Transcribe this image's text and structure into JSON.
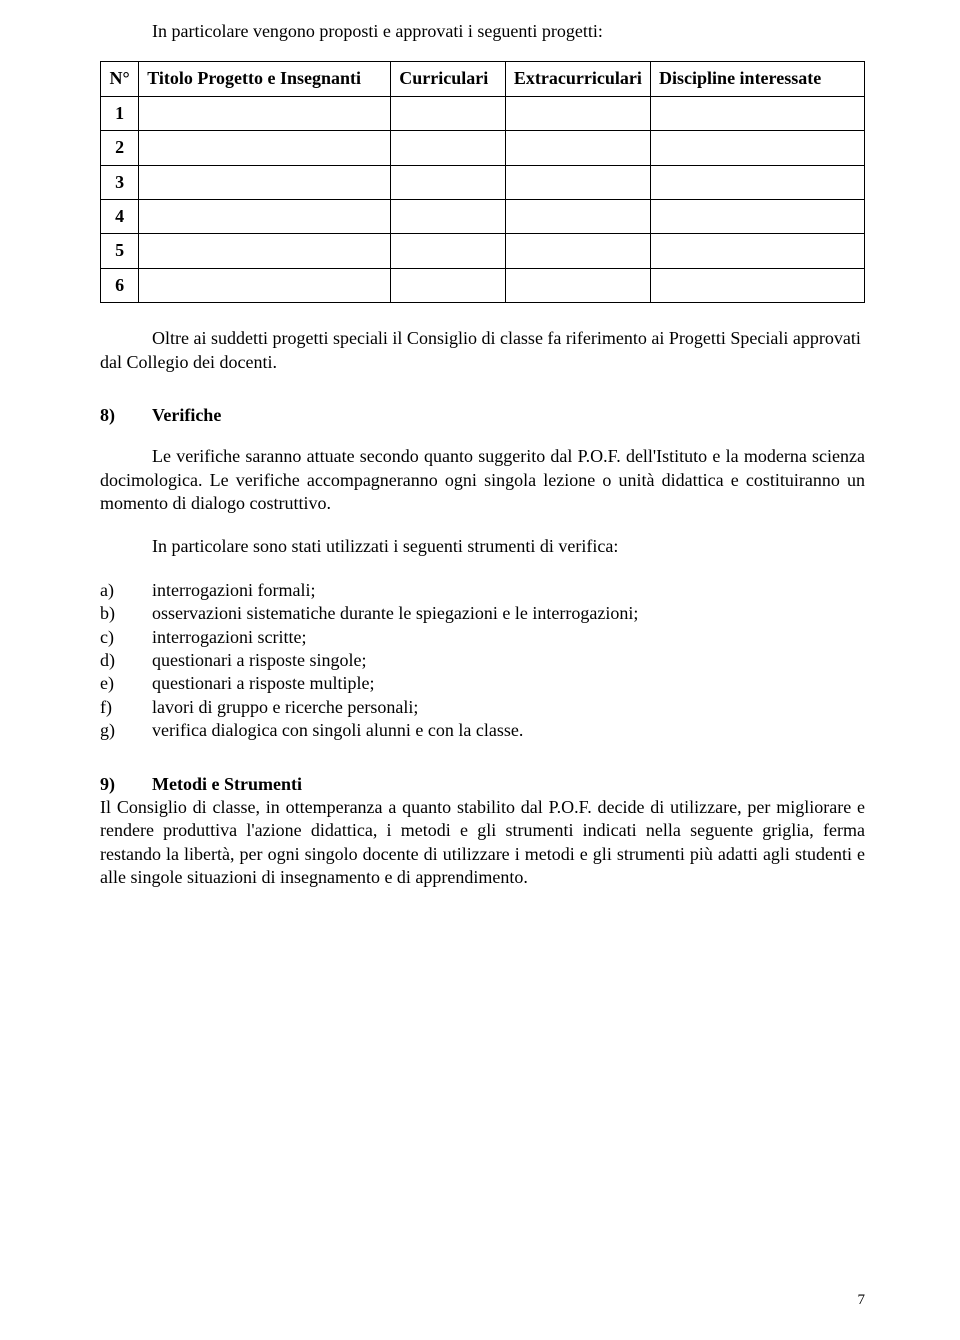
{
  "intro": "In particolare vengono proposti e approvati i seguenti progetti:",
  "table": {
    "headers": {
      "n": "N°",
      "titolo": "Titolo Progetto e Insegnanti",
      "curriculari": "Curriculari",
      "extracurriculari": "Extracurriculari",
      "discipline": "Discipline interessate"
    },
    "rows": [
      "1",
      "2",
      "3",
      "4",
      "5",
      "6"
    ]
  },
  "para_suddetti": "Oltre ai suddetti progetti speciali il Consiglio di classe fa riferimento ai Progetti Speciali approvati dal Collegio dei docenti.",
  "section8": {
    "num": "8)",
    "title": "Verifiche",
    "body": "Le verifiche saranno attuate secondo quanto suggerito dal P.O.F. dell'Istituto e la moderna scienza docimologica. Le verifiche accompagneranno ogni singola lezione o unità didattica e costituiranno un momento di dialogo costruttivo.",
    "intro_list": "In particolare sono stati utilizzati i seguenti strumenti di verifica:",
    "items": [
      {
        "letter": "a)",
        "text": "interrogazioni formali;"
      },
      {
        "letter": "b)",
        "text": "osservazioni sistematiche durante le spiegazioni e le interrogazioni;"
      },
      {
        "letter": "c)",
        "text": "interrogazioni scritte;"
      },
      {
        "letter": "d)",
        "text": "questionari a risposte singole;"
      },
      {
        "letter": "e)",
        "text": "questionari a risposte multiple;"
      },
      {
        "letter": "f)",
        "text": "lavori di gruppo e ricerche personali;"
      },
      {
        "letter": "g)",
        "text": "verifica dialogica con singoli alunni e con la classe."
      }
    ]
  },
  "section9": {
    "num": "9)",
    "title": "Metodi e Strumenti",
    "body": "Il Consiglio di classe, in ottemperanza a quanto stabilito dal P.O.F. decide di utilizzare, per migliorare e rendere produttiva l'azione didattica, i metodi e gli strumenti indicati nella seguente griglia, ferma restando la libertà, per ogni singolo docente di utilizzare i metodi e gli strumenti più adatti agli studenti e alle singole situazioni di insegnamento e di apprendimento."
  },
  "page_number": "7"
}
